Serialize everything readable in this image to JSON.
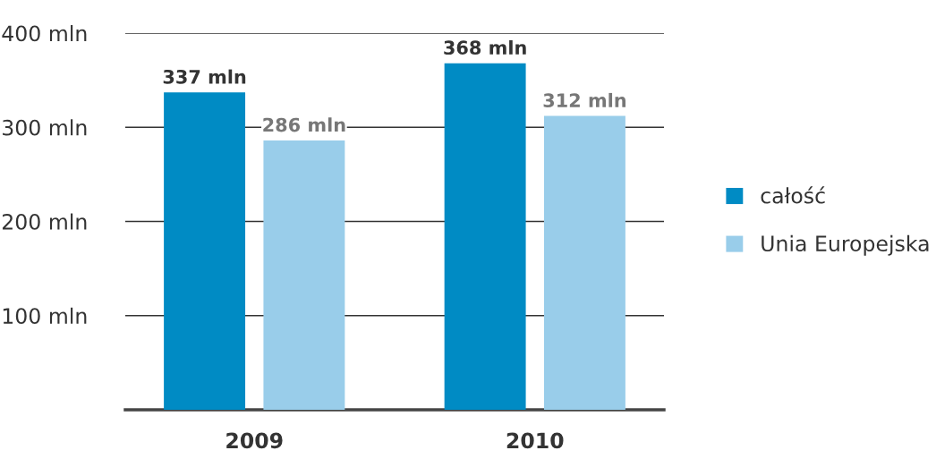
{
  "chart_data": {
    "type": "bar",
    "categories": [
      "2009",
      "2010"
    ],
    "series": [
      {
        "name": "całość",
        "color": "#008bc4",
        "values": [
          337,
          368
        ],
        "value_labels": [
          "337 mln",
          "368 mln"
        ]
      },
      {
        "name": "Unia Europejska",
        "color": "#99cdea",
        "values": [
          286,
          312
        ],
        "value_labels": [
          "286 mln",
          "312 mln"
        ]
      }
    ],
    "ylim": [
      0,
      400
    ],
    "yticks": [
      {
        "value": 100,
        "label": "100 mln"
      },
      {
        "value": 200,
        "label": "200 mln"
      },
      {
        "value": 300,
        "label": "300 mln"
      },
      {
        "value": 400,
        "label": "400 mln"
      }
    ],
    "grid": "y",
    "legend": "right"
  }
}
